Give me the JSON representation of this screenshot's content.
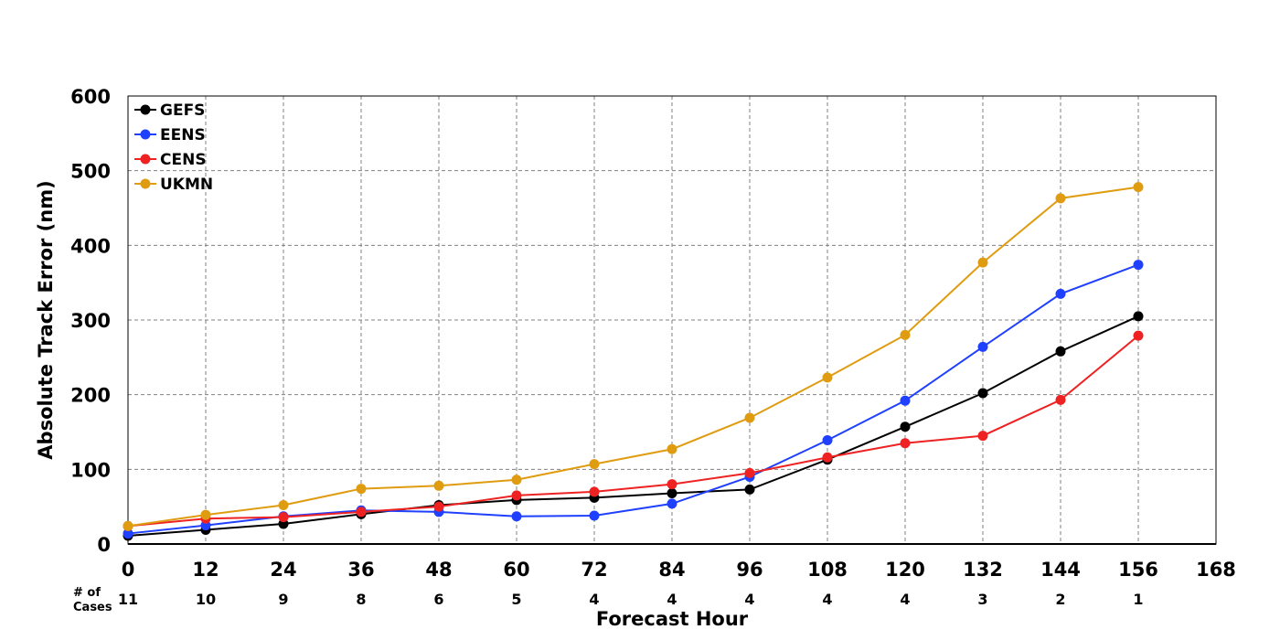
{
  "chart_data": {
    "type": "line",
    "title": "",
    "xlabel": "Forecast Hour",
    "ylabel": "Absolute Track Error (nm)",
    "xlim": [
      0,
      168
    ],
    "ylim": [
      0,
      600
    ],
    "x_ticks": [
      0,
      12,
      24,
      36,
      48,
      60,
      72,
      84,
      96,
      108,
      120,
      132,
      144,
      156,
      168
    ],
    "y_ticks": [
      0,
      100,
      200,
      300,
      400,
      500,
      600
    ],
    "grid": true,
    "legend_position": "top-left",
    "x": [
      0,
      12,
      24,
      36,
      48,
      60,
      72,
      84,
      96,
      108,
      120,
      132,
      144,
      156
    ],
    "series": [
      {
        "name": "GEFS",
        "color": "#000000",
        "values": [
          11,
          19,
          27,
          40,
          52,
          59,
          62,
          68,
          73,
          113,
          157,
          202,
          258,
          305
        ]
      },
      {
        "name": "EENS",
        "color": "#2040ff",
        "values": [
          14,
          25,
          37,
          45,
          43,
          37,
          38,
          54,
          90,
          139,
          192,
          264,
          335,
          374
        ]
      },
      {
        "name": "CENS",
        "color": "#ee2222",
        "values": [
          24,
          34,
          36,
          43,
          50,
          65,
          70,
          80,
          95,
          116,
          135,
          145,
          193,
          279
        ]
      },
      {
        "name": "UKMN",
        "color": "#e09c10",
        "values": [
          24,
          39,
          52,
          74,
          78,
          86,
          107,
          127,
          169,
          223,
          280,
          377,
          463,
          478
        ]
      }
    ],
    "cases": {
      "label_line1": "# of",
      "label_line2": "Cases",
      "values": [
        "11",
        "10",
        "9",
        "8",
        "6",
        "5",
        "4",
        "4",
        "4",
        "4",
        "4",
        "3",
        "2",
        "1"
      ]
    }
  }
}
